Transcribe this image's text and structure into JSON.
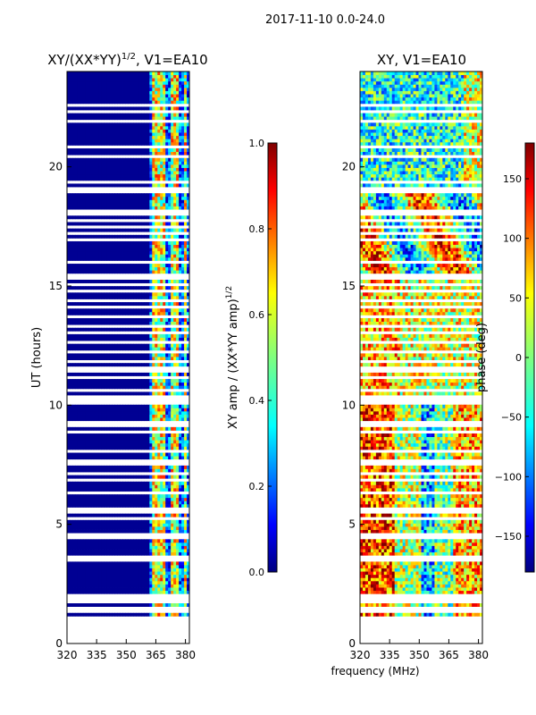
{
  "figure": {
    "suptitle": "2017-11-10 0.0-24.0",
    "shared_xlabel": "frequency (MHz)"
  },
  "chart_data": [
    {
      "type": "heatmap",
      "title": "XY/(XX*YY)",
      "title_superscript": "1/2",
      "title_suffix": ", V1=EA10",
      "ylabel": "UT (hours)",
      "xlim": [
        320,
        382
      ],
      "ylim": [
        0,
        24
      ],
      "xticks": [
        320,
        335,
        350,
        365,
        380
      ],
      "yticks": [
        0,
        5,
        10,
        15,
        20
      ],
      "data_start_hour": 1.15,
      "data_end_hour": 24.0,
      "gaps_hours": [
        1.3,
        1.5,
        1.75,
        1.95,
        2.05,
        3.5,
        3.7,
        4.4,
        4.6,
        5.3,
        5.5,
        5.7,
        6.3,
        6.8,
        7.1,
        7.6,
        8.1,
        8.9,
        9.2,
        9.3,
        10.05,
        10.2,
        10.4,
        10.6,
        11.1,
        11.5,
        11.8,
        12.2,
        12.6,
        13.0,
        13.3,
        13.7,
        14.1,
        14.4,
        14.8,
        15.05,
        15.3,
        15.4,
        15.5,
        16.0,
        16.9,
        17.2,
        17.5,
        17.8,
        18.0,
        18.2,
        18.9,
        19.1,
        19.4,
        20.4,
        20.8,
        21.9,
        22.3,
        22.6
      ],
      "bright_channels_mhz": [
        [
          362,
          366
        ],
        [
          367,
          369
        ],
        [
          372,
          376
        ],
        [
          378,
          380
        ]
      ],
      "colorbar": {
        "label": "XY amp / (XX*YY amp)",
        "label_superscript": "1/2",
        "range": [
          0.0,
          1.0
        ],
        "ticks": [
          "0.0",
          "0.2",
          "0.4",
          "0.6",
          "0.8",
          "1.0"
        ]
      }
    },
    {
      "type": "heatmap",
      "title": "XY, V1=EA10",
      "xlim": [
        320,
        382
      ],
      "ylim": [
        0,
        24
      ],
      "xticks": [
        320,
        335,
        350,
        365,
        380
      ],
      "yticks": [
        0,
        5,
        10,
        15,
        20
      ],
      "data_start_hour": 1.15,
      "data_end_hour": 24.0,
      "colorbar": {
        "label": "phase (deg)",
        "range": [
          -180,
          180
        ],
        "ticks": [
          "−150",
          "−100",
          "−50",
          "0",
          "50",
          "100",
          "150"
        ]
      }
    }
  ],
  "colors": {
    "jet": [
      "#00007f",
      "#0000ff",
      "#007fff",
      "#00ffff",
      "#7fff7f",
      "#ffff00",
      "#ff7f00",
      "#ff0000",
      "#7f0000"
    ],
    "axis": "#000000",
    "gap": "#ffffff"
  }
}
